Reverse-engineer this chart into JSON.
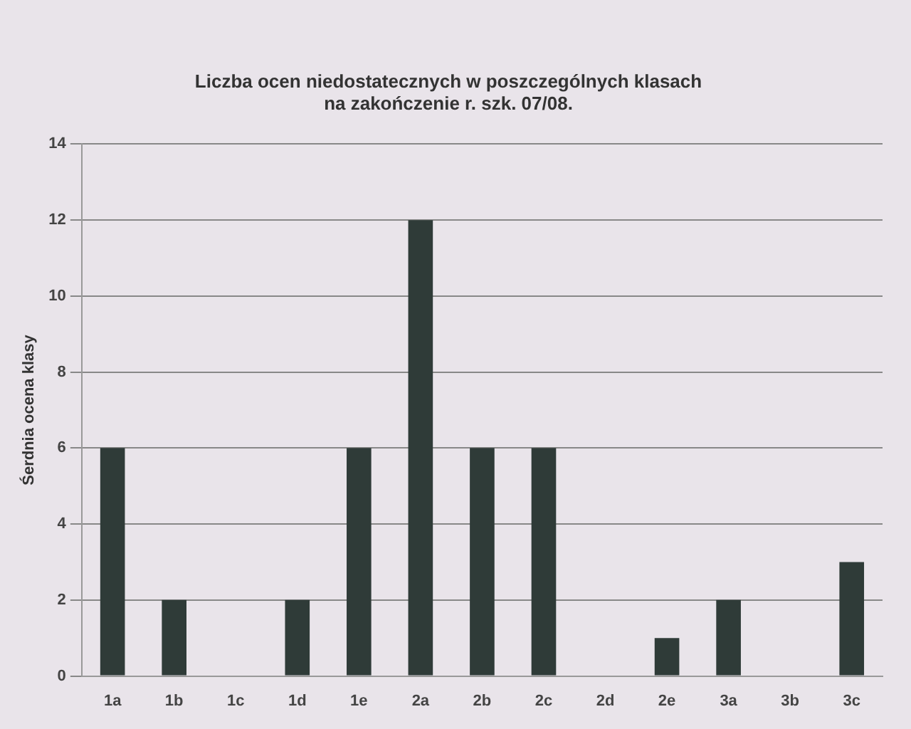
{
  "chart_data": {
    "type": "bar",
    "title": "Liczba ocen niedostatecznych w poszczególnych klasach\nna zakończenie r. szk. 07/08.",
    "ylabel": "Śerdnia ocena klasy",
    "categories": [
      "1a",
      "1b",
      "1c",
      "1d",
      "1e",
      "2a",
      "2b",
      "2c",
      "2d",
      "2e",
      "3a",
      "3b",
      "3c"
    ],
    "values": [
      6,
      2,
      0,
      2,
      6,
      12,
      6,
      6,
      0,
      1,
      2,
      0,
      3
    ],
    "color": "#2f3b38",
    "ylim": [
      0,
      14
    ],
    "yticks": [
      0,
      2,
      4,
      6,
      8,
      10,
      12,
      14
    ],
    "grid": "y",
    "legend": false
  }
}
